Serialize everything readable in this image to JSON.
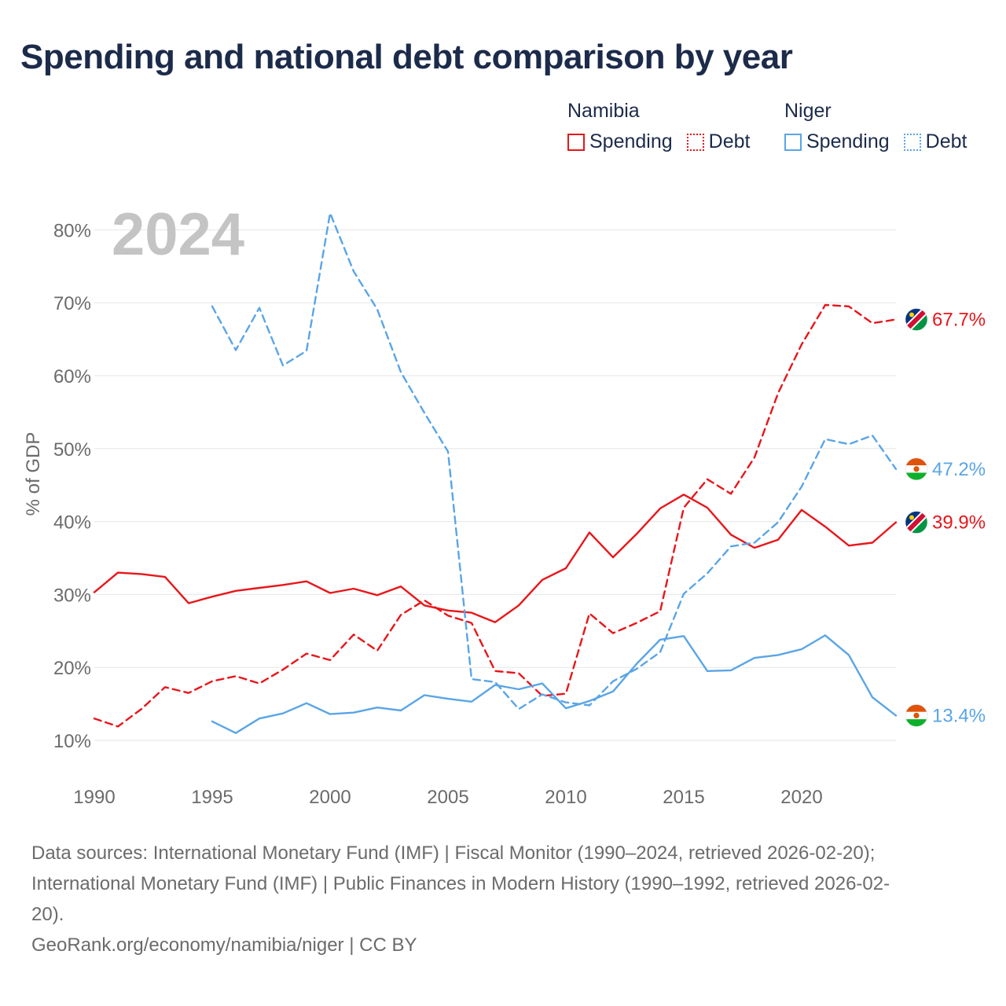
{
  "title": "Spending and national debt comparison by year",
  "legend": {
    "groups": [
      {
        "country": "Namibia",
        "color": "#e8161b",
        "items": [
          {
            "label": "Spending",
            "style": "solid"
          },
          {
            "label": "Debt",
            "style": "dotted"
          }
        ]
      },
      {
        "country": "Niger",
        "color": "#5aa5e6",
        "items": [
          {
            "label": "Spending",
            "style": "solid"
          },
          {
            "label": "Debt",
            "style": "dotted"
          }
        ]
      }
    ]
  },
  "chart_data": {
    "type": "line",
    "title": "Spending and national debt comparison by year",
    "year_label": "2024",
    "ylabel": "% of GDP",
    "xlabel": "",
    "xlim": [
      1990,
      2024
    ],
    "ylim": [
      10,
      85
    ],
    "x_ticks": [
      1990,
      1995,
      2000,
      2005,
      2010,
      2015,
      2020
    ],
    "y_ticks": [
      10,
      20,
      30,
      40,
      50,
      60,
      70,
      80
    ],
    "y_tick_labels": [
      "10%",
      "20%",
      "30%",
      "40%",
      "50%",
      "60%",
      "70%",
      "80%"
    ],
    "grid": "horizontal",
    "series": [
      {
        "name": "Namibia Spending",
        "country": "Namibia",
        "metric": "Spending",
        "color": "#e8161b",
        "dash": "solid",
        "end_label": "39.9%",
        "flag": "namibia",
        "points": [
          [
            1990,
            30.3
          ],
          [
            1991,
            33.0
          ],
          [
            1992,
            32.8
          ],
          [
            1993,
            32.4
          ],
          [
            1994,
            28.8
          ],
          [
            1995,
            29.7
          ],
          [
            1996,
            30.5
          ],
          [
            1997,
            30.9
          ],
          [
            1998,
            31.3
          ],
          [
            1999,
            31.8
          ],
          [
            2000,
            30.2
          ],
          [
            2001,
            30.8
          ],
          [
            2002,
            29.9
          ],
          [
            2003,
            31.1
          ],
          [
            2004,
            28.5
          ],
          [
            2005,
            27.8
          ],
          [
            2006,
            27.5
          ],
          [
            2007,
            26.2
          ],
          [
            2008,
            28.5
          ],
          [
            2009,
            32.0
          ],
          [
            2010,
            33.6
          ],
          [
            2011,
            38.5
          ],
          [
            2012,
            35.1
          ],
          [
            2013,
            38.3
          ],
          [
            2014,
            41.8
          ],
          [
            2015,
            43.7
          ],
          [
            2016,
            41.9
          ],
          [
            2017,
            38.2
          ],
          [
            2018,
            36.4
          ],
          [
            2019,
            37.5
          ],
          [
            2020,
            41.6
          ],
          [
            2021,
            39.3
          ],
          [
            2022,
            36.7
          ],
          [
            2023,
            37.1
          ],
          [
            2024,
            39.9
          ]
        ]
      },
      {
        "name": "Namibia Debt",
        "country": "Namibia",
        "metric": "Debt",
        "color": "#e8161b",
        "dash": "dashed",
        "end_label": "67.7%",
        "flag": "namibia",
        "points": [
          [
            1990,
            13.0
          ],
          [
            1991,
            11.9
          ],
          [
            1992,
            14.3
          ],
          [
            1993,
            17.3
          ],
          [
            1994,
            16.5
          ],
          [
            1995,
            18.1
          ],
          [
            1996,
            18.8
          ],
          [
            1997,
            17.8
          ],
          [
            1998,
            19.7
          ],
          [
            1999,
            21.9
          ],
          [
            2000,
            21.0
          ],
          [
            2001,
            24.5
          ],
          [
            2002,
            22.3
          ],
          [
            2003,
            27.2
          ],
          [
            2004,
            29.2
          ],
          [
            2005,
            27.1
          ],
          [
            2006,
            26.1
          ],
          [
            2007,
            19.5
          ],
          [
            2008,
            19.2
          ],
          [
            2009,
            16.1
          ],
          [
            2010,
            16.4
          ],
          [
            2011,
            27.4
          ],
          [
            2012,
            24.7
          ],
          [
            2013,
            26.1
          ],
          [
            2014,
            27.7
          ],
          [
            2015,
            41.9
          ],
          [
            2016,
            45.8
          ],
          [
            2017,
            43.8
          ],
          [
            2018,
            48.8
          ],
          [
            2019,
            57.6
          ],
          [
            2020,
            64.3
          ],
          [
            2021,
            69.7
          ],
          [
            2022,
            69.5
          ],
          [
            2023,
            67.2
          ],
          [
            2024,
            67.7
          ]
        ]
      },
      {
        "name": "Niger Spending",
        "country": "Niger",
        "metric": "Spending",
        "color": "#5aa5e6",
        "dash": "solid",
        "end_label": "13.4%",
        "flag": "niger",
        "points": [
          [
            1995,
            12.6
          ],
          [
            1996,
            11.0
          ],
          [
            1997,
            13.0
          ],
          [
            1998,
            13.7
          ],
          [
            1999,
            15.1
          ],
          [
            2000,
            13.6
          ],
          [
            2001,
            13.8
          ],
          [
            2002,
            14.5
          ],
          [
            2003,
            14.1
          ],
          [
            2004,
            16.2
          ],
          [
            2005,
            15.7
          ],
          [
            2006,
            15.3
          ],
          [
            2007,
            17.6
          ],
          [
            2008,
            17.0
          ],
          [
            2009,
            17.8
          ],
          [
            2010,
            14.4
          ],
          [
            2011,
            15.4
          ],
          [
            2012,
            16.7
          ],
          [
            2013,
            20.5
          ],
          [
            2014,
            23.8
          ],
          [
            2015,
            24.3
          ],
          [
            2016,
            19.5
          ],
          [
            2017,
            19.6
          ],
          [
            2018,
            21.3
          ],
          [
            2019,
            21.7
          ],
          [
            2020,
            22.5
          ],
          [
            2021,
            24.4
          ],
          [
            2022,
            21.7
          ],
          [
            2023,
            15.9
          ],
          [
            2024,
            13.4
          ]
        ]
      },
      {
        "name": "Niger Debt",
        "country": "Niger",
        "metric": "Debt",
        "color": "#5aa5e6",
        "dash": "dashed",
        "end_label": "47.2%",
        "flag": "niger",
        "points": [
          [
            1995,
            69.5
          ],
          [
            1996,
            63.5
          ],
          [
            1997,
            69.3
          ],
          [
            1998,
            61.4
          ],
          [
            1999,
            63.4
          ],
          [
            2000,
            82.3
          ],
          [
            2001,
            74.3
          ],
          [
            2002,
            69.1
          ],
          [
            2003,
            60.5
          ],
          [
            2004,
            54.9
          ],
          [
            2005,
            49.6
          ],
          [
            2006,
            18.4
          ],
          [
            2007,
            18.0
          ],
          [
            2008,
            14.3
          ],
          [
            2009,
            16.3
          ],
          [
            2010,
            15.2
          ],
          [
            2011,
            14.8
          ],
          [
            2012,
            18.1
          ],
          [
            2013,
            19.8
          ],
          [
            2014,
            22.1
          ],
          [
            2015,
            30.1
          ],
          [
            2016,
            32.9
          ],
          [
            2017,
            36.6
          ],
          [
            2018,
            37.1
          ],
          [
            2019,
            39.9
          ],
          [
            2020,
            44.8
          ],
          [
            2021,
            51.3
          ],
          [
            2022,
            50.6
          ],
          [
            2023,
            51.8
          ],
          [
            2024,
            47.2
          ]
        ]
      }
    ]
  },
  "footer": {
    "sources_line1": "Data sources: International Monetary Fund (IMF) | Fiscal Monitor (1990–2024, retrieved 2026-02-20);",
    "sources_line2": "International Monetary Fund (IMF) | Public Finances in Modern History (1990–1992, retrieved 2026-02-",
    "sources_line3": "20).",
    "credit": "GeoRank.org/economy/namibia/niger | CC BY"
  }
}
